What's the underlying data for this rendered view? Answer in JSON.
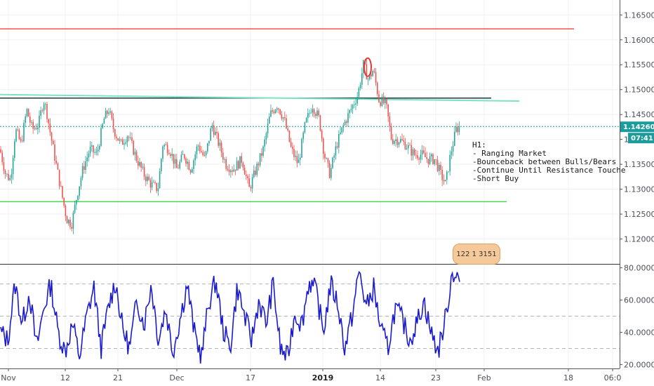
{
  "chart_data": [
    {
      "type": "candlestick",
      "title": "",
      "ylim": [
        1.115,
        1.168
      ],
      "y_ticks": [
        "1.16500",
        "1.16000",
        "1.15500",
        "1.15000",
        "1.14500",
        "1.14000",
        "1.13500",
        "1.13000",
        "1.12500",
        "1.12000"
      ],
      "y_tick_values": [
        1.165,
        1.16,
        1.155,
        1.15,
        1.145,
        1.14,
        1.135,
        1.13,
        1.125,
        1.12
      ],
      "last_price": "1.14260",
      "last_price_value": 1.1426,
      "countdown": "07:41",
      "series_points": [
        [
          0,
          1.138
        ],
        [
          8,
          1.133
        ],
        [
          15,
          1.132
        ],
        [
          22,
          1.142
        ],
        [
          30,
          1.139
        ],
        [
          38,
          1.146
        ],
        [
          46,
          1.142
        ],
        [
          55,
          1.143
        ],
        [
          62,
          1.148
        ],
        [
          66,
          1.146
        ],
        [
          72,
          1.141
        ],
        [
          80,
          1.135
        ],
        [
          88,
          1.129
        ],
        [
          95,
          1.124
        ],
        [
          102,
          1.123
        ],
        [
          110,
          1.129
        ],
        [
          118,
          1.134
        ],
        [
          128,
          1.138
        ],
        [
          138,
          1.137
        ],
        [
          148,
          1.144
        ],
        [
          155,
          1.146
        ],
        [
          162,
          1.142
        ],
        [
          172,
          1.139
        ],
        [
          182,
          1.141
        ],
        [
          195,
          1.136
        ],
        [
          205,
          1.133
        ],
        [
          215,
          1.131
        ],
        [
          225,
          1.13
        ],
        [
          232,
          1.139
        ],
        [
          242,
          1.138
        ],
        [
          252,
          1.134
        ],
        [
          262,
          1.137
        ],
        [
          272,
          1.134
        ],
        [
          282,
          1.139
        ],
        [
          292,
          1.136
        ],
        [
          302,
          1.143
        ],
        [
          312,
          1.139
        ],
        [
          322,
          1.135
        ],
        [
          332,
          1.134
        ],
        [
          345,
          1.136
        ],
        [
          355,
          1.13
        ],
        [
          365,
          1.134
        ],
        [
          375,
          1.138
        ],
        [
          385,
          1.145
        ],
        [
          395,
          1.147
        ],
        [
          405,
          1.144
        ],
        [
          415,
          1.138
        ],
        [
          425,
          1.135
        ],
        [
          435,
          1.143
        ],
        [
          445,
          1.147
        ],
        [
          455,
          1.144
        ],
        [
          462,
          1.137
        ],
        [
          470,
          1.133
        ],
        [
          480,
          1.139
        ],
        [
          490,
          1.143
        ],
        [
          500,
          1.146
        ],
        [
          510,
          1.149
        ],
        [
          518,
          1.155
        ],
        [
          525,
          1.152
        ],
        [
          532,
          1.154
        ],
        [
          540,
          1.148
        ],
        [
          550,
          1.147
        ],
        [
          558,
          1.14
        ],
        [
          568,
          1.14
        ],
        [
          578,
          1.139
        ],
        [
          590,
          1.137
        ],
        [
          600,
          1.137
        ],
        [
          610,
          1.136
        ],
        [
          620,
          1.136
        ],
        [
          628,
          1.133
        ],
        [
          635,
          1.131
        ],
        [
          642,
          1.137
        ],
        [
          650,
          1.142
        ],
        [
          656,
          1.1426
        ]
      ],
      "horizontal_lines": [
        {
          "name": "resistance-top",
          "price": 1.1622,
          "color": "#ef5350"
        },
        {
          "name": "resistance-mid",
          "price": 1.1483,
          "color": "#1b3a3a"
        },
        {
          "name": "support",
          "price": 1.1275,
          "color": "#4cd44c"
        }
      ],
      "trend_line": {
        "color": "#7fe0c8",
        "from_price": 1.149,
        "to_price": 1.1477
      },
      "bull_color": "#26a69a",
      "bear_color": "#ef5350",
      "marker_color": "#e53935"
    },
    {
      "type": "line",
      "ylim": [
        18,
        82
      ],
      "y_ticks": [
        "80.0000",
        "60.0000",
        "40.0000",
        "20.0000"
      ],
      "y_tick_values": [
        80,
        60,
        40,
        20
      ],
      "levels": [
        70,
        50,
        30
      ],
      "series": [
        {
          "values": [
            40,
            35,
            70,
            45,
            65,
            30,
            55,
            70,
            40,
            28,
            45,
            25,
            50,
            68,
            30,
            55,
            72,
            42,
            30,
            60,
            45,
            70,
            35,
            55,
            28,
            48,
            70,
            40,
            25,
            58,
            72,
            42,
            30,
            68,
            50,
            35,
            60,
            45,
            70,
            30,
            24,
            52,
            45,
            72,
            65,
            40,
            70,
            58,
            30,
            50,
            78,
            55,
            68,
            42,
            30,
            55,
            48,
            35,
            45,
            60,
            40,
            28,
            48,
            78,
            72
          ]
        }
      ],
      "color": "#1a1ad0"
    }
  ],
  "x_ticks": [
    "Nov",
    "12",
    "21",
    "Dec",
    "17",
    "2019",
    "14",
    "23",
    "Feb",
    "18",
    "06:0"
  ],
  "x_tick_bold": [
    false,
    false,
    false,
    false,
    false,
    true,
    false,
    false,
    false,
    false,
    false
  ],
  "annotation": {
    "lines": [
      "H1:",
      "- Ranging Market",
      "-Bounceback between Bulls/Bears",
      "-Continue Until Resistance Touche",
      "-Short Buy"
    ]
  },
  "widget": {
    "label": "122 1 3151"
  }
}
